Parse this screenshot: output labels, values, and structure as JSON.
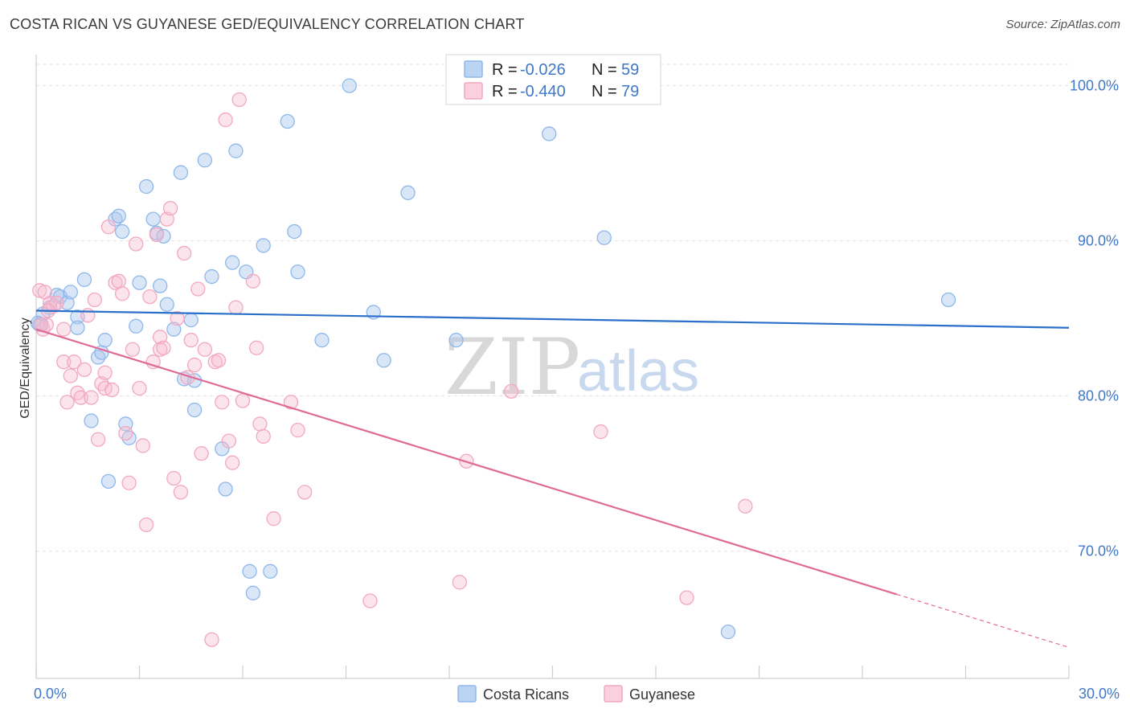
{
  "title": "COSTA RICAN VS GUYANESE GED/EQUIVALENCY CORRELATION CHART",
  "source": "Source: ZipAtlas.com",
  "watermark": {
    "zip": "ZIP",
    "atlas": "atlas"
  },
  "colors": {
    "blue": "#8fb8ea",
    "blue_line": "#2a6fc9",
    "pink": "#f2a8c0",
    "pink_line": "#e06a96",
    "axis_text": "#3f78c8"
  },
  "legend": {
    "r_label": "R =",
    "n_label": "N =",
    "rows": [
      {
        "r": "-0.026",
        "n": "59",
        "color": "#8fb8ea"
      },
      {
        "r": "-0.440",
        "n": "79",
        "color": "#f2a8c0"
      }
    ]
  },
  "bottom_legend": [
    {
      "label": "Costa Ricans",
      "color": "#8fb8ea"
    },
    {
      "label": "Guyanese",
      "color": "#f2a8c0"
    }
  ],
  "chart_data": {
    "type": "scatter",
    "title": "COSTA RICAN VS GUYANESE GED/EQUIVALENCY CORRELATION CHART",
    "xlabel": "",
    "ylabel": "GED/Equivalency",
    "xlim": [
      0,
      30
    ],
    "ylim": [
      61.8,
      102
    ],
    "x_tick_labels": [
      {
        "value": 0,
        "label": "0.0%"
      },
      {
        "value": 30,
        "label": "30.0%"
      }
    ],
    "y_tick_labels": [
      {
        "value": 100,
        "label": "100.0%"
      },
      {
        "value": 90,
        "label": "90.0%"
      },
      {
        "value": 80,
        "label": "80.0%"
      },
      {
        "value": 70,
        "label": "70.0%"
      }
    ],
    "grid": true,
    "legend_position": "top-center",
    "series": [
      {
        "name": "Costa Ricans",
        "color": "#8fb8ea",
        "trend": {
          "x": [
            0,
            30
          ],
          "y": [
            85.5,
            84.4
          ],
          "dashed_from": null
        },
        "points": [
          [
            0.1,
            84.6
          ],
          [
            0.2,
            85.3
          ],
          [
            0.4,
            85.7
          ],
          [
            0.6,
            86.5
          ],
          [
            0.7,
            86.4
          ],
          [
            0.9,
            86.0
          ],
          [
            1.0,
            86.7
          ],
          [
            1.2,
            85.1
          ],
          [
            1.2,
            84.4
          ],
          [
            1.4,
            87.5
          ],
          [
            1.6,
            78.4
          ],
          [
            1.8,
            82.5
          ],
          [
            1.9,
            82.8
          ],
          [
            2.0,
            83.6
          ],
          [
            2.1,
            74.5
          ],
          [
            2.3,
            91.4
          ],
          [
            2.4,
            91.6
          ],
          [
            2.5,
            90.6
          ],
          [
            2.6,
            78.2
          ],
          [
            2.7,
            77.3
          ],
          [
            2.9,
            84.5
          ],
          [
            3.0,
            87.3
          ],
          [
            3.2,
            93.5
          ],
          [
            3.4,
            91.4
          ],
          [
            3.5,
            90.5
          ],
          [
            3.6,
            87.1
          ],
          [
            3.7,
            90.3
          ],
          [
            3.8,
            85.9
          ],
          [
            4.0,
            84.3
          ],
          [
            4.2,
            94.4
          ],
          [
            4.3,
            81.1
          ],
          [
            4.5,
            84.9
          ],
          [
            4.6,
            81.0
          ],
          [
            4.6,
            79.1
          ],
          [
            4.9,
            95.2
          ],
          [
            5.1,
            87.7
          ],
          [
            5.4,
            76.6
          ],
          [
            5.5,
            74.0
          ],
          [
            5.7,
            88.6
          ],
          [
            5.8,
            95.8
          ],
          [
            6.1,
            88.0
          ],
          [
            6.2,
            68.7
          ],
          [
            6.3,
            67.3
          ],
          [
            6.6,
            89.7
          ],
          [
            6.8,
            68.7
          ],
          [
            7.3,
            97.7
          ],
          [
            7.5,
            90.6
          ],
          [
            7.6,
            88.0
          ],
          [
            8.3,
            83.6
          ],
          [
            9.1,
            100.0
          ],
          [
            9.8,
            85.4
          ],
          [
            10.1,
            82.3
          ],
          [
            10.8,
            93.1
          ],
          [
            12.2,
            83.6
          ],
          [
            14.9,
            96.9
          ],
          [
            16.5,
            90.2
          ],
          [
            20.1,
            64.8
          ],
          [
            26.5,
            86.2
          ],
          [
            0.05,
            84.7
          ]
        ]
      },
      {
        "name": "Guyanese",
        "color": "#f2a8c0",
        "trend": {
          "x": [
            0,
            30
          ],
          "y": [
            84.3,
            63.8
          ],
          "dashed_from": 25.0
        },
        "points": [
          [
            0.1,
            86.8
          ],
          [
            0.2,
            84.3
          ],
          [
            0.3,
            84.6
          ],
          [
            0.4,
            86.0
          ],
          [
            0.5,
            85.8
          ],
          [
            0.6,
            86.0
          ],
          [
            0.8,
            82.2
          ],
          [
            0.8,
            84.3
          ],
          [
            0.9,
            79.6
          ],
          [
            1.0,
            81.3
          ],
          [
            1.1,
            82.2
          ],
          [
            1.2,
            80.2
          ],
          [
            1.3,
            79.9
          ],
          [
            1.4,
            81.7
          ],
          [
            1.6,
            79.9
          ],
          [
            1.7,
            86.2
          ],
          [
            1.8,
            77.2
          ],
          [
            1.9,
            80.8
          ],
          [
            2.0,
            81.5
          ],
          [
            2.0,
            80.5
          ],
          [
            2.1,
            90.9
          ],
          [
            2.2,
            80.4
          ],
          [
            2.3,
            87.3
          ],
          [
            2.4,
            87.4
          ],
          [
            2.5,
            86.6
          ],
          [
            2.6,
            77.6
          ],
          [
            2.7,
            74.4
          ],
          [
            2.8,
            83.0
          ],
          [
            2.9,
            89.8
          ],
          [
            3.0,
            80.5
          ],
          [
            3.1,
            76.8
          ],
          [
            3.2,
            71.7
          ],
          [
            3.3,
            86.4
          ],
          [
            3.4,
            82.2
          ],
          [
            3.5,
            90.4
          ],
          [
            3.6,
            83.0
          ],
          [
            3.6,
            83.8
          ],
          [
            3.7,
            83.1
          ],
          [
            3.8,
            91.4
          ],
          [
            3.9,
            92.1
          ],
          [
            4.0,
            74.7
          ],
          [
            4.1,
            85.0
          ],
          [
            4.2,
            73.8
          ],
          [
            4.3,
            89.2
          ],
          [
            4.4,
            81.2
          ],
          [
            4.5,
            83.6
          ],
          [
            4.6,
            82.0
          ],
          [
            4.7,
            86.9
          ],
          [
            4.8,
            76.3
          ],
          [
            4.9,
            83.0
          ],
          [
            5.1,
            64.3
          ],
          [
            5.2,
            82.2
          ],
          [
            5.3,
            82.3
          ],
          [
            5.4,
            79.6
          ],
          [
            5.5,
            97.8
          ],
          [
            5.6,
            77.1
          ],
          [
            5.7,
            75.7
          ],
          [
            5.8,
            85.7
          ],
          [
            5.9,
            99.1
          ],
          [
            6.0,
            79.7
          ],
          [
            6.3,
            87.4
          ],
          [
            6.4,
            83.1
          ],
          [
            6.5,
            78.2
          ],
          [
            6.6,
            77.4
          ],
          [
            6.9,
            72.1
          ],
          [
            7.4,
            79.6
          ],
          [
            7.6,
            77.8
          ],
          [
            7.8,
            73.8
          ],
          [
            9.7,
            66.8
          ],
          [
            12.3,
            68.0
          ],
          [
            12.5,
            75.8
          ],
          [
            13.8,
            80.3
          ],
          [
            16.4,
            77.7
          ],
          [
            18.9,
            67.0
          ],
          [
            20.6,
            72.9
          ],
          [
            0.15,
            84.6
          ],
          [
            0.35,
            85.5
          ],
          [
            1.5,
            85.2
          ],
          [
            0.25,
            86.7
          ]
        ]
      }
    ]
  }
}
